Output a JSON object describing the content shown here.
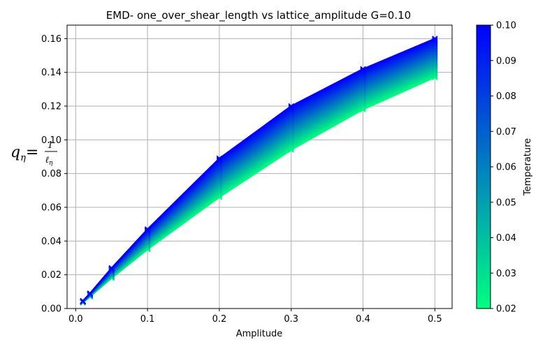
{
  "chart_data": {
    "type": "line",
    "title": "EMD- one_over_shear_length vs lattice_amplitude G=0.10",
    "xlabel": "Amplitude",
    "ylabel": {
      "q": "q",
      "sub": "η",
      "eq": "=",
      "num": "1",
      "den": "ℓ",
      "den_sub": "η"
    },
    "xlim": [
      -0.012,
      0.524
    ],
    "ylim": [
      0.0,
      0.168
    ],
    "xticks": [
      0.0,
      0.1,
      0.2,
      0.3,
      0.4,
      0.5
    ],
    "yticks": [
      0.0,
      0.02,
      0.04,
      0.06,
      0.08,
      0.1,
      0.12,
      0.14,
      0.16
    ],
    "grid": true,
    "marker": "x",
    "x": [
      0.01,
      0.02,
      0.05,
      0.1,
      0.2,
      0.3,
      0.4,
      0.5
    ],
    "series_low": {
      "temperature": 0.02,
      "values": [
        0.0035,
        0.007,
        0.018,
        0.035,
        0.066,
        0.094,
        0.118,
        0.137
      ]
    },
    "series_high": {
      "temperature": 0.1,
      "values": [
        0.0045,
        0.009,
        0.024,
        0.047,
        0.089,
        0.12,
        0.142,
        0.16
      ]
    },
    "series_count": 41,
    "colorbar": {
      "label": "Temperature",
      "min": 0.02,
      "max": 0.1,
      "ticks": [
        0.02,
        0.03,
        0.04,
        0.05,
        0.06,
        0.07,
        0.08,
        0.09,
        0.1
      ],
      "color_low": "#00ff80",
      "color_high": "#0000ff",
      "colormap": "winter"
    }
  }
}
